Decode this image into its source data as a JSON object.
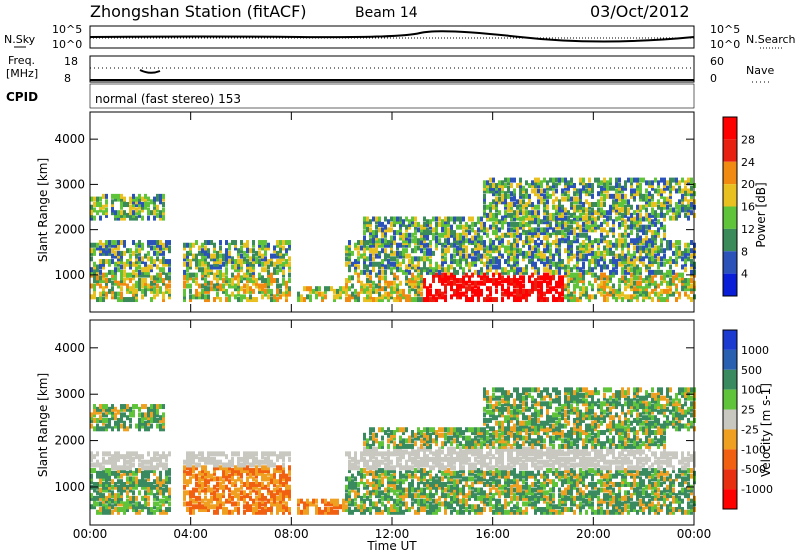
{
  "header": {
    "station": "Zhongshan Station (fitACF)",
    "beam": "Beam 14",
    "date": "03/Oct/2012"
  },
  "status_panel": {
    "left_top_label": "N.Sky",
    "left_top_ticks": [
      "10^5",
      "10^0"
    ],
    "right_top_label": "N.Search",
    "right_top_ticks": [
      "10^5",
      "10^0"
    ],
    "left_freq_label": "Freq.",
    "left_freq_unit": "[MHz]",
    "left_freq_ticks": [
      "18",
      "8"
    ],
    "right_mid_label": "Nave",
    "right_mid_ticks": [
      "60",
      "0"
    ],
    "cpid_label": "CPID",
    "cpid_text": "normal (fast stereo) 153"
  },
  "chart_data": [
    {
      "type": "heatmap",
      "panel": "power",
      "ylabel": "Slant Range [km]",
      "yticks": [
        "1000",
        "2000",
        "3000",
        "4000"
      ],
      "ylim": [
        180,
        4600
      ],
      "x": [
        "00:00",
        "04:00",
        "08:00",
        "12:00",
        "16:00",
        "20:00",
        "00:00"
      ],
      "colorbar": {
        "label": "Power [dB]",
        "ticks": [
          "4",
          "8",
          "12",
          "16",
          "20",
          "24",
          "28"
        ],
        "colors": [
          "#0a1ed8",
          "#2a52b8",
          "#3a8a5a",
          "#5fc43a",
          "#e8c020",
          "#f08a10",
          "#e82010",
          "#ff0000"
        ]
      }
    },
    {
      "type": "heatmap",
      "panel": "velocity",
      "ylabel": "Slant Range [km]",
      "yticks": [
        "1000",
        "2000",
        "3000",
        "4000"
      ],
      "ylim": [
        180,
        4600
      ],
      "x": [
        "00:00",
        "04:00",
        "08:00",
        "12:00",
        "16:00",
        "20:00",
        "00:00"
      ],
      "xlabel": "Time UT",
      "colorbar": {
        "label": "Velocity [m s-1]",
        "ticks": [
          "1000",
          "500",
          "100",
          "25",
          "-25",
          "-100",
          "-500",
          "-1000"
        ],
        "colors": [
          "#1a3ad0",
          "#2a60b0",
          "#3a8a60",
          "#5fc43a",
          "#c8c8c0",
          "#f0a020",
          "#f06010",
          "#e83010",
          "#ff0000"
        ]
      }
    }
  ]
}
